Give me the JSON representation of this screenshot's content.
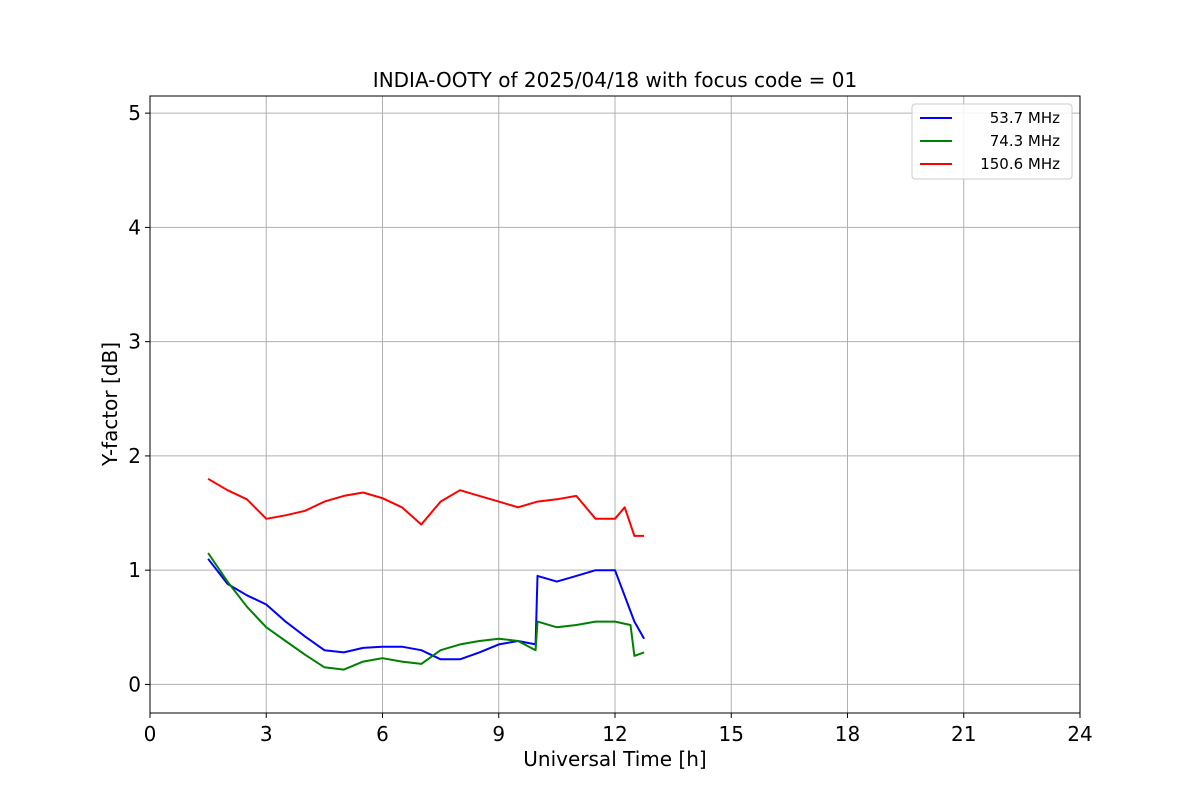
{
  "chart_data": {
    "type": "line",
    "title": "INDIA-OOTY of 2025/04/18 with focus code = 01",
    "xlabel": "Universal Time [h]",
    "ylabel": "Y-factor [dB]",
    "xlim": [
      0,
      24
    ],
    "ylim": [
      -0.25,
      5.15
    ],
    "xticks": [
      0,
      3,
      6,
      9,
      12,
      15,
      18,
      21,
      24
    ],
    "yticks": [
      0,
      1,
      2,
      3,
      4,
      5
    ],
    "grid": true,
    "legend_position": "top-right",
    "series": [
      {
        "name": "53.7 MHz",
        "color": "#0000ff",
        "x": [
          1.5,
          2.0,
          2.5,
          3.0,
          3.5,
          4.0,
          4.5,
          5.0,
          5.5,
          6.0,
          6.5,
          7.0,
          7.5,
          8.0,
          8.5,
          9.0,
          9.5,
          9.95,
          10.0,
          10.5,
          11.0,
          11.5,
          12.0,
          12.5,
          12.75
        ],
        "y": [
          1.1,
          0.88,
          0.78,
          0.7,
          0.55,
          0.42,
          0.3,
          0.28,
          0.32,
          0.33,
          0.33,
          0.3,
          0.22,
          0.22,
          0.28,
          0.35,
          0.38,
          0.35,
          0.95,
          0.9,
          0.95,
          1.0,
          1.0,
          0.55,
          0.4
        ]
      },
      {
        "name": "74.3 MHz",
        "color": "#008000",
        "x": [
          1.5,
          2.0,
          2.5,
          3.0,
          3.5,
          4.0,
          4.5,
          5.0,
          5.5,
          6.0,
          6.5,
          7.0,
          7.5,
          8.0,
          8.5,
          9.0,
          9.5,
          9.95,
          10.0,
          10.5,
          11.0,
          11.5,
          12.0,
          12.4,
          12.5,
          12.75
        ],
        "y": [
          1.15,
          0.9,
          0.68,
          0.5,
          0.38,
          0.26,
          0.15,
          0.13,
          0.2,
          0.23,
          0.2,
          0.18,
          0.3,
          0.35,
          0.38,
          0.4,
          0.38,
          0.3,
          0.55,
          0.5,
          0.52,
          0.55,
          0.55,
          0.52,
          0.25,
          0.28
        ]
      },
      {
        "name": "150.6 MHz",
        "color": "#ff0000",
        "x": [
          1.5,
          2.0,
          2.5,
          3.0,
          3.5,
          4.0,
          4.5,
          5.0,
          5.5,
          6.0,
          6.5,
          7.0,
          7.5,
          8.0,
          8.5,
          9.0,
          9.5,
          10.0,
          10.5,
          11.0,
          11.5,
          12.0,
          12.25,
          12.5,
          12.75
        ],
        "y": [
          1.8,
          1.7,
          1.62,
          1.45,
          1.48,
          1.52,
          1.6,
          1.65,
          1.68,
          1.63,
          1.55,
          1.4,
          1.6,
          1.7,
          1.65,
          1.6,
          1.55,
          1.6,
          1.62,
          1.65,
          1.45,
          1.45,
          1.55,
          1.3,
          1.3
        ]
      }
    ]
  }
}
